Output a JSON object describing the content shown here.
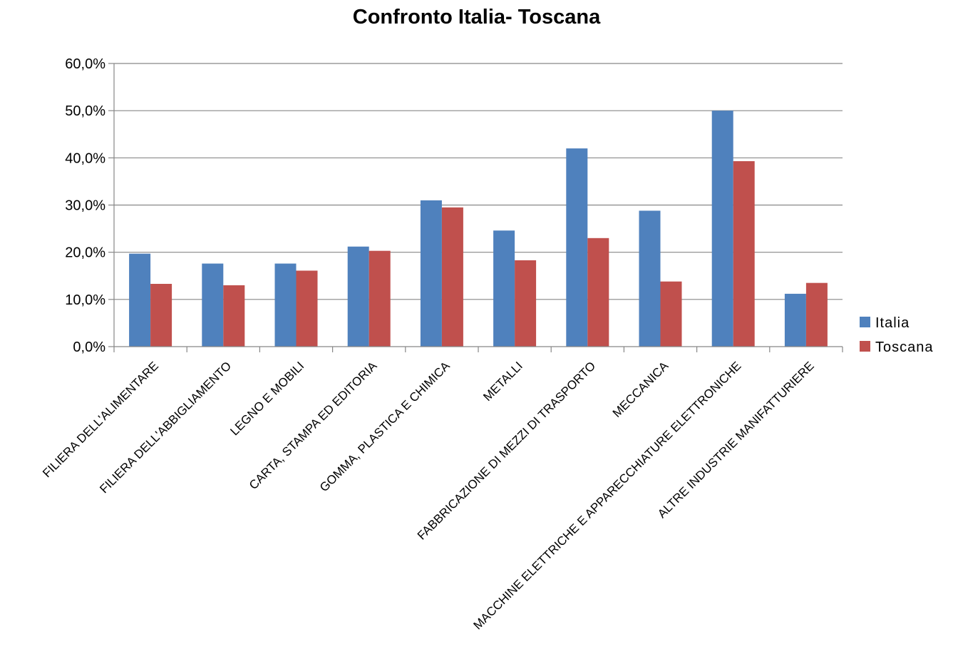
{
  "chart_data": {
    "type": "bar",
    "title": "Confronto Italia- Toscana",
    "xlabel": "",
    "ylabel": "",
    "ylim": [
      0,
      0.6
    ],
    "yticks": [
      0,
      0.1,
      0.2,
      0.3,
      0.4,
      0.5,
      0.6
    ],
    "ytick_labels": [
      "0,0%",
      "10,0%",
      "20,0%",
      "30,0%",
      "40,0%",
      "50,0%",
      "60,0%"
    ],
    "grid": true,
    "legend_position": "right",
    "categories": [
      "FILIERA DELL'ALIMENTARE",
      "FILIERA DELL'ABBIGLIAMENTO",
      "LEGNO E MOBILI",
      "CARTA, STAMPA ED EDITORIA",
      "GOMMA, PLASTICA E CHIMICA",
      "METALLI",
      "FABBRICAZIONE DI MEZZI DI TRASPORTO",
      "MECCANICA",
      "MACCHINE ELETTRICHE E APPARECCHIATURE ELETTRONICHE",
      "ALTRE INDUSTRIE MANIFATTURIERE"
    ],
    "series": [
      {
        "name": "Italia",
        "color": "#4F81BD",
        "values": [
          0.197,
          0.176,
          0.176,
          0.212,
          0.31,
          0.246,
          0.42,
          0.288,
          0.5,
          0.112
        ]
      },
      {
        "name": "Toscana",
        "color": "#C0504D",
        "values": [
          0.133,
          0.13,
          0.161,
          0.203,
          0.295,
          0.183,
          0.23,
          0.138,
          0.393,
          0.135
        ]
      }
    ]
  }
}
